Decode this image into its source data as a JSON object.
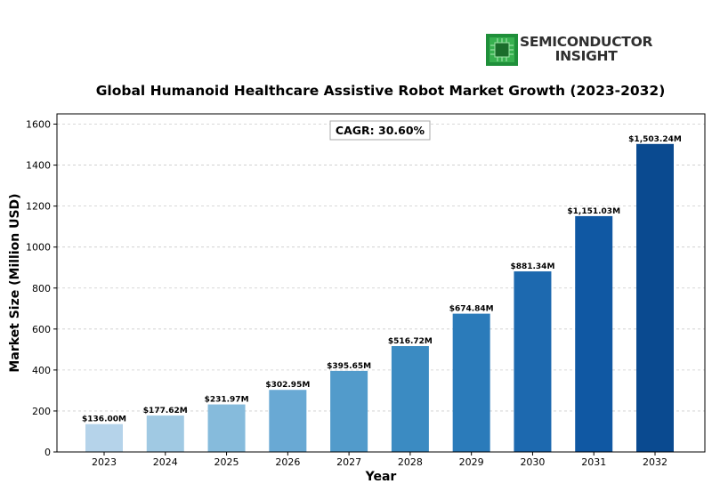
{
  "brand": {
    "line1": "SEMICONDUCTOR",
    "line2": "INSIGHT"
  },
  "chart_data": {
    "type": "bar",
    "title": "Global Humanoid Healthcare Assistive Robot Market Growth (2023-2032)",
    "xlabel": "Year",
    "ylabel": "Market Size (Million USD)",
    "ylim": [
      0,
      1650
    ],
    "yticks": [
      0,
      200,
      400,
      600,
      800,
      1000,
      1200,
      1400,
      1600
    ],
    "grid": true,
    "annotation": "CAGR: 30.60%",
    "categories": [
      "2023",
      "2024",
      "2025",
      "2026",
      "2027",
      "2028",
      "2029",
      "2030",
      "2031",
      "2032"
    ],
    "values": [
      136.0,
      177.62,
      231.97,
      302.95,
      395.65,
      516.72,
      674.84,
      881.34,
      1151.03,
      1503.24
    ],
    "data_labels": [
      "$136.00M",
      "$177.62M",
      "$231.97M",
      "$302.95M",
      "$395.65M",
      "$516.72M",
      "$674.84M",
      "$881.34M",
      "$1,151.03M",
      "$1,503.24M"
    ],
    "colors": [
      "#b5d3ea",
      "#a0c9e3",
      "#86bbdc",
      "#69a9d4",
      "#529bcb",
      "#3b8bc2",
      "#2b7bba",
      "#1d69af",
      "#1058a3",
      "#0a4a90"
    ]
  }
}
